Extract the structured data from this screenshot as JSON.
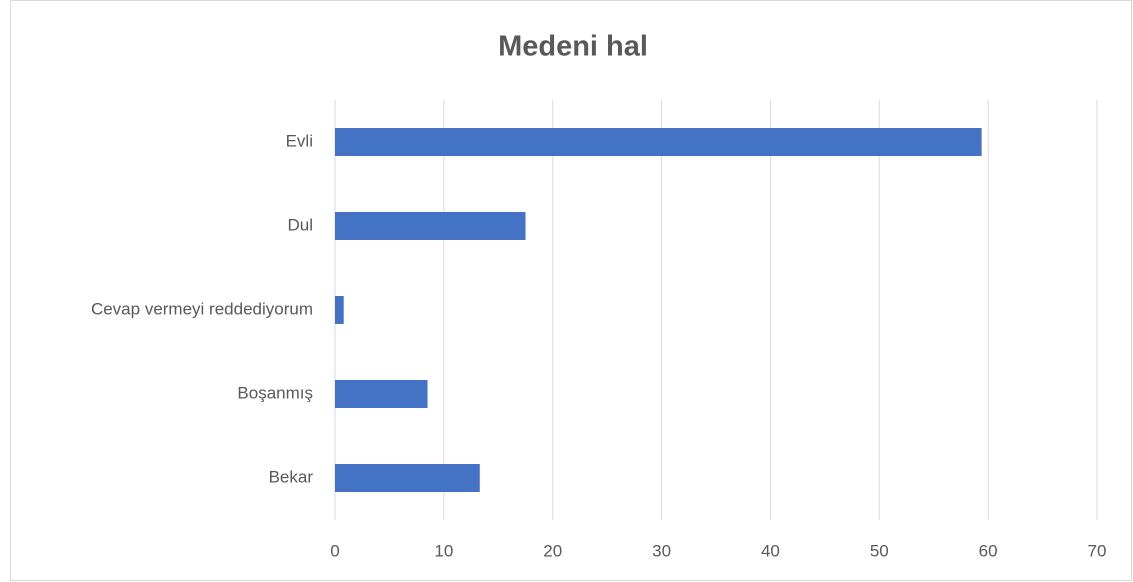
{
  "chart_data": {
    "type": "bar",
    "orientation": "horizontal",
    "title": "Medeni hal",
    "categories": [
      "Evli",
      "Dul",
      "Cevap vermeyi reddediyorum",
      "Boşanmış",
      "Bekar"
    ],
    "values": [
      59.4,
      17.5,
      0.8,
      8.5,
      13.3
    ],
    "color": "#4472c4",
    "xlim": [
      0,
      70
    ],
    "xticks": [
      0,
      10,
      20,
      30,
      40,
      50,
      60,
      70
    ],
    "grid": true
  }
}
